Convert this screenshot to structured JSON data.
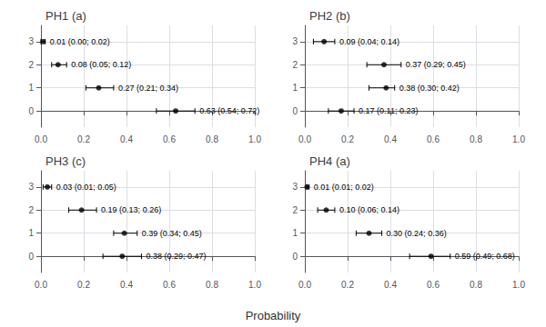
{
  "chart_data": [
    {
      "type": "scatter",
      "title": "PH1 (a)",
      "color": "#000000",
      "x": [
        0.01,
        0.08,
        0.27,
        0.63
      ],
      "x_lower": [
        0.0,
        0.05,
        0.21,
        0.54
      ],
      "x_upper": [
        0.02,
        0.12,
        0.34,
        0.72
      ],
      "y": [
        3,
        2,
        1,
        0
      ],
      "value_labels": [
        "0.01 (0.00; 0.02)",
        "0.08 (0.05; 0.12)",
        "0.27 (0.21; 0.34)",
        "0.63 (0.54; 0.72)"
      ],
      "xlim": [
        0.0,
        1.0
      ],
      "xticks": [
        {
          "value": 0.0,
          "label": "0.0"
        },
        0.2,
        0.4,
        0.6,
        0.8,
        {
          "value": 1.0,
          "label": "1.0"
        }
      ],
      "ylim": [
        -0.7,
        3.7
      ],
      "yticks": [
        0,
        1,
        2,
        3
      ],
      "grid": true
    },
    {
      "type": "scatter",
      "title": "PH2 (b)",
      "color": "#000000",
      "x": [
        0.09,
        0.37,
        0.38,
        0.17
      ],
      "x_lower": [
        0.04,
        0.29,
        0.3,
        0.11
      ],
      "x_upper": [
        0.14,
        0.45,
        0.42,
        0.23
      ],
      "y": [
        3,
        2,
        1,
        0
      ],
      "value_labels": [
        "0.09 (0.04; 0.14)",
        "0.37 (0.29; 0.45)",
        "0.38 (0.30; 0.42)",
        "0.17 (0.11; 0.23)"
      ],
      "xlim": [
        0.0,
        1.0
      ],
      "xticks": [
        {
          "value": 0.0,
          "label": "0.0"
        },
        0.2,
        0.4,
        0.6,
        0.8,
        {
          "value": 1.0,
          "label": "1.0"
        }
      ],
      "ylim": [
        -0.7,
        3.7
      ],
      "yticks": [
        0,
        1,
        2,
        3
      ],
      "grid": true
    },
    {
      "type": "scatter",
      "title": "PH3 (c)",
      "color": "#000000",
      "x": [
        0.03,
        0.19,
        0.39,
        0.38
      ],
      "x_lower": [
        0.01,
        0.13,
        0.34,
        0.29
      ],
      "x_upper": [
        0.05,
        0.26,
        0.45,
        0.47
      ],
      "y": [
        3,
        2,
        1,
        0
      ],
      "value_labels": [
        "0.03 (0.01; 0.05)",
        "0.19 (0.13; 0.26)",
        "0.39 (0.34; 0.45)",
        "0.38 (0.29; 0.47)"
      ],
      "xlim": [
        0.0,
        1.0
      ],
      "xticks": [
        {
          "value": 0.0,
          "label": "0.0"
        },
        0.2,
        0.4,
        0.6,
        0.8,
        {
          "value": 1.0,
          "label": "1.0"
        }
      ],
      "ylim": [
        -0.7,
        3.7
      ],
      "yticks": [
        0,
        1,
        2,
        3
      ],
      "grid": true
    },
    {
      "type": "scatter",
      "title": "PH4 (a)",
      "color": "#000000",
      "x": [
        0.01,
        0.1,
        0.3,
        0.59
      ],
      "x_lower": [
        0.01,
        0.06,
        0.24,
        0.49
      ],
      "x_upper": [
        0.02,
        0.14,
        0.36,
        0.68
      ],
      "y": [
        3,
        2,
        1,
        0
      ],
      "value_labels": [
        "0.01 (0.01; 0.02)",
        "0.10 (0.06; 0.14)",
        "0.30 (0.24; 0.36)",
        "0.59 (0.49; 0.68)"
      ],
      "xlim": [
        0.0,
        1.0
      ],
      "xticks": [
        {
          "value": 0.0,
          "label": "0.0"
        },
        0.2,
        0.4,
        0.6,
        0.8,
        {
          "value": 1.0,
          "label": "1.0"
        }
      ],
      "ylim": [
        -0.7,
        3.7
      ],
      "yticks": [
        0,
        1,
        2,
        3
      ],
      "grid": true
    }
  ],
  "xlabel": "Probability"
}
